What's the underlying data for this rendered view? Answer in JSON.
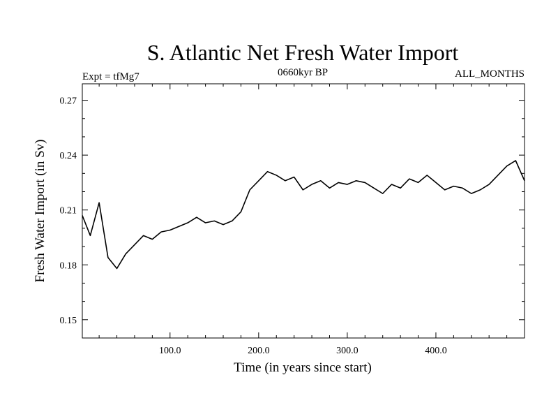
{
  "chart_data": {
    "type": "line",
    "title": "S. Atlantic Net Fresh Water Import",
    "subtitle_left": "Expt = tfMg7",
    "subtitle_center": "0660kyr BP",
    "subtitle_right": "ALL_MONTHS",
    "xlabel": "Time (in years since start)",
    "ylabel": "Fresh Water Import (in Sv)",
    "xlim": [
      1,
      500
    ],
    "ylim": [
      0.14,
      0.279
    ],
    "xticks": [
      100,
      200,
      300,
      400
    ],
    "xtick_labels": [
      "100.0",
      "200.0",
      "300.0",
      "400.0"
    ],
    "yticks": [
      0.15,
      0.18,
      0.21,
      0.24,
      0.27
    ],
    "ytick_labels": [
      "0.15",
      "0.18",
      "0.21",
      "0.24",
      "0.27"
    ],
    "grid": false,
    "series": [
      {
        "color": "#000000",
        "x": [
          1,
          10,
          20,
          30,
          40,
          50,
          60,
          70,
          80,
          90,
          100,
          110,
          120,
          130,
          140,
          150,
          160,
          170,
          180,
          190,
          200,
          210,
          220,
          230,
          240,
          250,
          260,
          270,
          280,
          290,
          300,
          310,
          320,
          330,
          340,
          350,
          360,
          370,
          380,
          390,
          400,
          410,
          420,
          430,
          440,
          450,
          460,
          470,
          480,
          490,
          500
        ],
        "y": [
          0.207,
          0.196,
          0.214,
          0.184,
          0.178,
          0.186,
          0.191,
          0.196,
          0.194,
          0.198,
          0.199,
          0.201,
          0.203,
          0.206,
          0.203,
          0.204,
          0.202,
          0.204,
          0.209,
          0.221,
          0.226,
          0.231,
          0.229,
          0.226,
          0.228,
          0.221,
          0.224,
          0.226,
          0.222,
          0.225,
          0.224,
          0.226,
          0.225,
          0.222,
          0.219,
          0.224,
          0.222,
          0.227,
          0.225,
          0.229,
          0.225,
          0.221,
          0.223,
          0.222,
          0.219,
          0.221,
          0.224,
          0.229,
          0.234,
          0.237,
          0.226
        ]
      }
    ]
  }
}
